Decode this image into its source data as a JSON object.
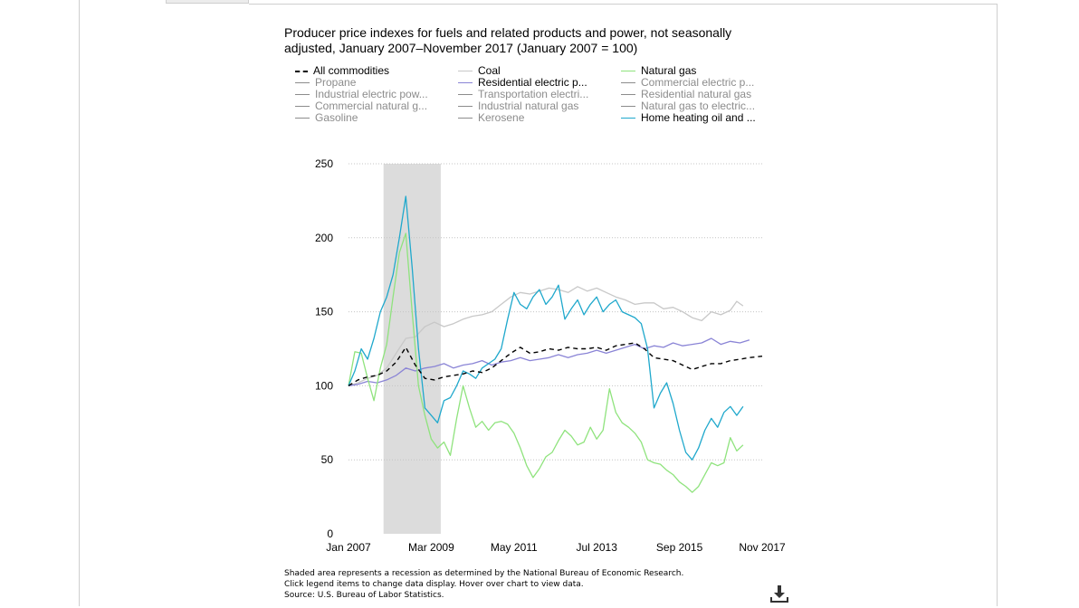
{
  "chart_data": {
    "type": "line",
    "title": "Producer price indexes for fuels and related products and power, not seasonally adjusted, January 2007–November 2017 (January 2007 = 100)",
    "xlabel": "",
    "ylabel": "",
    "ylim": [
      0,
      250
    ],
    "yticks": [
      "0",
      "50",
      "100",
      "150",
      "200",
      "250"
    ],
    "xlim": [
      "2007-01",
      "2017-11"
    ],
    "xticks": [
      {
        "label": "Jan 2007",
        "date": "2007-01"
      },
      {
        "label": "Mar 2009",
        "date": "2009-03"
      },
      {
        "label": "May 2011",
        "date": "2011-05"
      },
      {
        "label": "Jul 2013",
        "date": "2013-07"
      },
      {
        "label": "Sep 2015",
        "date": "2015-09"
      },
      {
        "label": "Nov 2017",
        "date": "2017-11"
      }
    ],
    "grid": "horizontal dotted",
    "legend_placement": "top",
    "recession": {
      "start": "2007-12",
      "end": "2009-06"
    },
    "legend": [
      {
        "name": "All commodities",
        "color": "#000000",
        "style": "dashed",
        "active": true
      },
      {
        "name": "Propane",
        "color": "#8c8c8c",
        "active": false
      },
      {
        "name": "Industrial electric pow...",
        "color": "#8c8c8c",
        "active": false
      },
      {
        "name": "Commercial natural g...",
        "color": "#8c8c8c",
        "active": false
      },
      {
        "name": "Gasoline",
        "color": "#8c8c8c",
        "active": false
      },
      {
        "name": "Coal",
        "color": "#c8c8c8",
        "active": true
      },
      {
        "name": "Residential electric p...",
        "color": "#8a84d6",
        "active": true
      },
      {
        "name": "Transportation electri...",
        "color": "#8c8c8c",
        "active": false
      },
      {
        "name": "Industrial natural gas",
        "color": "#8c8c8c",
        "active": false
      },
      {
        "name": "Kerosene",
        "color": "#8c8c8c",
        "active": false
      },
      {
        "name": "Natural gas",
        "color": "#8fe37d",
        "active": true
      },
      {
        "name": "Commercial electric p...",
        "color": "#8c8c8c",
        "active": false
      },
      {
        "name": "Residential natural gas",
        "color": "#8c8c8c",
        "active": false
      },
      {
        "name": "Natural gas to electric...",
        "color": "#8c8c8c",
        "active": false
      },
      {
        "name": "Home heating oil and ...",
        "color": "#1fa8cc",
        "active": true
      }
    ],
    "series": [
      {
        "name": "All commodities",
        "color": "#000000",
        "style": "dashed",
        "x": [
          "2007-01",
          "2007-04",
          "2007-07",
          "2007-10",
          "2008-01",
          "2008-04",
          "2008-07",
          "2008-10",
          "2009-01",
          "2009-04",
          "2009-07",
          "2009-10",
          "2010-01",
          "2010-04",
          "2010-07",
          "2010-10",
          "2011-01",
          "2011-04",
          "2011-07",
          "2011-10",
          "2012-01",
          "2012-04",
          "2012-07",
          "2012-10",
          "2013-01",
          "2013-04",
          "2013-07",
          "2013-10",
          "2014-01",
          "2014-04",
          "2014-07",
          "2014-10",
          "2015-01",
          "2015-04",
          "2015-07",
          "2015-10",
          "2016-01",
          "2016-04",
          "2016-07",
          "2016-10",
          "2017-01",
          "2017-04",
          "2017-07",
          "2017-11"
        ],
        "values": [
          100,
          104,
          106,
          107,
          110,
          116,
          126,
          114,
          105,
          104,
          106,
          107,
          108,
          110,
          109,
          112,
          117,
          122,
          126,
          122,
          123,
          125,
          124,
          126,
          125,
          125,
          126,
          124,
          127,
          128,
          129,
          125,
          119,
          118,
          117,
          114,
          111,
          113,
          115,
          115,
          117,
          118,
          119,
          120
        ]
      },
      {
        "name": "Coal",
        "color": "#c8c8c8",
        "x": [
          "2007-01",
          "2007-04",
          "2007-07",
          "2007-10",
          "2008-01",
          "2008-04",
          "2008-07",
          "2008-10",
          "2009-01",
          "2009-04",
          "2009-07",
          "2009-10",
          "2010-01",
          "2010-04",
          "2010-07",
          "2010-10",
          "2011-01",
          "2011-04",
          "2011-07",
          "2011-10",
          "2012-01",
          "2012-04",
          "2012-07",
          "2012-10",
          "2013-01",
          "2013-04",
          "2013-07",
          "2013-10",
          "2014-01",
          "2014-04",
          "2014-07",
          "2014-10",
          "2015-01",
          "2015-04",
          "2015-07",
          "2015-10",
          "2016-01",
          "2016-04",
          "2016-07",
          "2016-10",
          "2017-01",
          "2017-03",
          "2017-05"
        ],
        "values": [
          100,
          102,
          105,
          107,
          112,
          122,
          132,
          133,
          140,
          143,
          140,
          142,
          145,
          147,
          148,
          150,
          155,
          160,
          163,
          162,
          164,
          166,
          165,
          163,
          167,
          164,
          166,
          163,
          160,
          158,
          155,
          156,
          156,
          152,
          153,
          150,
          146,
          144,
          150,
          148,
          151,
          157,
          154
        ]
      },
      {
        "name": "Residential electric p...",
        "color": "#8a84d6",
        "x": [
          "2007-01",
          "2007-04",
          "2007-07",
          "2007-10",
          "2008-01",
          "2008-04",
          "2008-07",
          "2008-10",
          "2009-01",
          "2009-04",
          "2009-07",
          "2009-10",
          "2010-01",
          "2010-04",
          "2010-07",
          "2010-10",
          "2011-01",
          "2011-04",
          "2011-07",
          "2011-10",
          "2012-01",
          "2012-04",
          "2012-07",
          "2012-10",
          "2013-01",
          "2013-04",
          "2013-07",
          "2013-10",
          "2014-01",
          "2014-04",
          "2014-07",
          "2014-10",
          "2015-01",
          "2015-04",
          "2015-07",
          "2015-10",
          "2016-01",
          "2016-04",
          "2016-07",
          "2016-10",
          "2017-01",
          "2017-04",
          "2017-07"
        ],
        "values": [
          100,
          101,
          103,
          102,
          104,
          107,
          112,
          110,
          112,
          113,
          115,
          112,
          114,
          115,
          117,
          114,
          116,
          117,
          119,
          117,
          118,
          119,
          121,
          119,
          121,
          122,
          124,
          122,
          124,
          126,
          128,
          125,
          127,
          126,
          129,
          127,
          128,
          129,
          132,
          128,
          130,
          129,
          131
        ]
      },
      {
        "name": "Natural gas",
        "color": "#8fe37d",
        "x": [
          "2007-01",
          "2007-03",
          "2007-05",
          "2007-07",
          "2007-09",
          "2007-11",
          "2008-01",
          "2008-03",
          "2008-05",
          "2008-07",
          "2008-09",
          "2008-11",
          "2009-01",
          "2009-03",
          "2009-05",
          "2009-07",
          "2009-09",
          "2009-11",
          "2010-01",
          "2010-03",
          "2010-05",
          "2010-07",
          "2010-09",
          "2010-11",
          "2011-01",
          "2011-03",
          "2011-05",
          "2011-07",
          "2011-09",
          "2011-11",
          "2012-01",
          "2012-03",
          "2012-05",
          "2012-07",
          "2012-09",
          "2012-11",
          "2013-01",
          "2013-03",
          "2013-05",
          "2013-07",
          "2013-09",
          "2013-11",
          "2014-01",
          "2014-03",
          "2014-05",
          "2014-07",
          "2014-09",
          "2014-11",
          "2015-01",
          "2015-03",
          "2015-05",
          "2015-07",
          "2015-09",
          "2015-11",
          "2016-01",
          "2016-03",
          "2016-05",
          "2016-07",
          "2016-09",
          "2016-11",
          "2017-01",
          "2017-03",
          "2017-05"
        ],
        "values": [
          100,
          123,
          122,
          105,
          90,
          112,
          128,
          160,
          190,
          203,
          150,
          100,
          80,
          64,
          58,
          62,
          53,
          78,
          100,
          85,
          72,
          76,
          70,
          75,
          76,
          74,
          68,
          58,
          46,
          38,
          44,
          52,
          55,
          63,
          70,
          66,
          60,
          62,
          72,
          64,
          70,
          98,
          82,
          75,
          72,
          68,
          62,
          50,
          48,
          47,
          43,
          40,
          35,
          32,
          28,
          32,
          40,
          48,
          46,
          48,
          65,
          56,
          60
        ]
      },
      {
        "name": "Home heating oil and ...",
        "color": "#1fa8cc",
        "x": [
          "2007-01",
          "2007-03",
          "2007-05",
          "2007-07",
          "2007-09",
          "2007-11",
          "2008-01",
          "2008-03",
          "2008-05",
          "2008-07",
          "2008-09",
          "2008-11",
          "2009-01",
          "2009-03",
          "2009-05",
          "2009-07",
          "2009-09",
          "2009-11",
          "2010-01",
          "2010-03",
          "2010-05",
          "2010-07",
          "2010-09",
          "2010-11",
          "2011-01",
          "2011-03",
          "2011-05",
          "2011-07",
          "2011-09",
          "2011-11",
          "2012-01",
          "2012-03",
          "2012-05",
          "2012-07",
          "2012-09",
          "2012-11",
          "2013-01",
          "2013-03",
          "2013-05",
          "2013-07",
          "2013-09",
          "2013-11",
          "2014-01",
          "2014-03",
          "2014-05",
          "2014-07",
          "2014-09",
          "2014-11",
          "2015-01",
          "2015-03",
          "2015-05",
          "2015-07",
          "2015-09",
          "2015-11",
          "2016-01",
          "2016-03",
          "2016-05",
          "2016-07",
          "2016-09",
          "2016-11",
          "2017-01",
          "2017-03",
          "2017-05"
        ],
        "values": [
          100,
          110,
          125,
          118,
          132,
          150,
          160,
          175,
          200,
          228,
          180,
          125,
          85,
          80,
          75,
          90,
          92,
          100,
          110,
          108,
          105,
          112,
          115,
          118,
          125,
          145,
          163,
          155,
          152,
          160,
          165,
          155,
          160,
          168,
          145,
          152,
          158,
          148,
          155,
          160,
          150,
          155,
          158,
          150,
          148,
          146,
          142,
          125,
          85,
          95,
          102,
          88,
          70,
          55,
          50,
          58,
          70,
          78,
          72,
          82,
          86,
          80,
          86
        ]
      }
    ],
    "notes": [
      "Shaded area represents a recession as determined by the National Bureau of Economic Research.",
      "Click legend items to change data display. Hover over chart to view data.",
      "Source: U.S. Bureau of Labor Statistics."
    ]
  },
  "icons": {
    "download": "download-icon"
  }
}
